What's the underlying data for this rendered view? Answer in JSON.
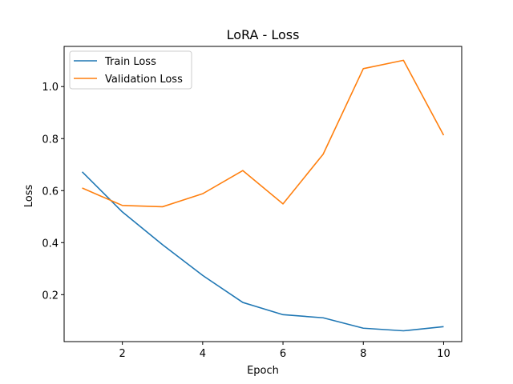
{
  "chart_data": {
    "type": "line",
    "title": "LoRA - Loss",
    "xlabel": "Epoch",
    "ylabel": "Loss",
    "x": [
      1,
      2,
      3,
      4,
      5,
      6,
      7,
      8,
      9,
      10
    ],
    "xlim": [
      0.55,
      10.45
    ],
    "ylim": [
      0.0195,
      1.1545
    ],
    "xticks": [
      2,
      4,
      6,
      8,
      10
    ],
    "yticks": [
      0.2,
      0.4,
      0.6,
      0.8,
      1.0
    ],
    "ytick_labels": [
      "0.2",
      "0.4",
      "0.6",
      "0.8",
      "1.0"
    ],
    "grid": false,
    "legend_position": "upper-left",
    "series": [
      {
        "name": "Train Loss",
        "color": "#1f77b4",
        "values": [
          0.672,
          0.518,
          0.392,
          0.274,
          0.17,
          0.123,
          0.111,
          0.071,
          0.061,
          0.077
        ]
      },
      {
        "name": "Validation Loss",
        "color": "#ff7f0e",
        "values": [
          0.61,
          0.543,
          0.538,
          0.588,
          0.677,
          0.549,
          0.74,
          1.069,
          1.101,
          0.813
        ]
      }
    ]
  }
}
